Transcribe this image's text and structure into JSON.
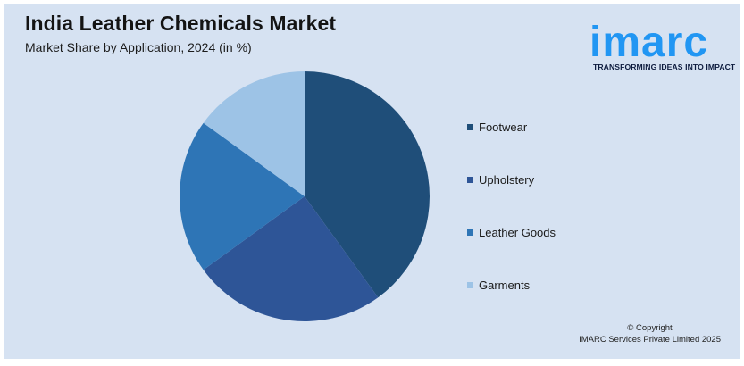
{
  "header": {
    "title": "India Leather Chemicals Market",
    "subtitle": "Market Share by Application, 2024 (in %)"
  },
  "logo": {
    "wordmark": "imarc",
    "tagline": "TRANSFORMING IDEAS INTO IMPACT",
    "color": "#2196f3"
  },
  "footer": {
    "copyright_line1": "© Copyright",
    "copyright_line2": "IMARC Services Private Limited 2025"
  },
  "chart_data": {
    "type": "pie",
    "title": "India Leather Chemicals Market",
    "subtitle": "Market Share by Application, 2024 (in %)",
    "categories": [
      "Footwear",
      "Upholstery",
      "Leather Goods",
      "Garments"
    ],
    "values": [
      40,
      25,
      20,
      15
    ],
    "colors": [
      "#1f4e79",
      "#2e5597",
      "#2e75b6",
      "#9dc3e6"
    ],
    "legend_position": "right",
    "start_angle_deg": 0,
    "direction": "clockwise"
  }
}
